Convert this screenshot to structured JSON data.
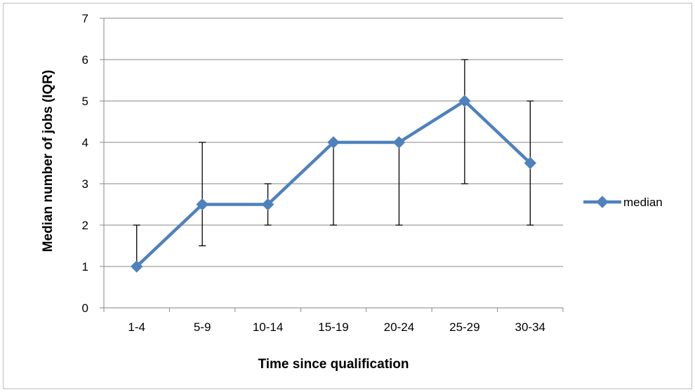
{
  "chart_data": {
    "type": "line",
    "categories": [
      "1-4",
      "5-9",
      "10-14",
      "15-19",
      "20-24",
      "25-29",
      "30-34"
    ],
    "series": [
      {
        "name": "median",
        "values": [
          1,
          2.5,
          2.5,
          4,
          4,
          5,
          3.5
        ],
        "error_low": [
          1,
          1.5,
          2,
          2,
          2,
          3,
          2
        ],
        "error_high": [
          2,
          4,
          3,
          4,
          4,
          6,
          5
        ],
        "color": "#4F81BD",
        "marker": "diamond"
      }
    ],
    "xlabel": "Time since qualification",
    "ylabel": "Median number of jobs (IQR)",
    "ylim": [
      0,
      7
    ],
    "yticks": [
      "0",
      "1",
      "2",
      "3",
      "4",
      "5",
      "6",
      "7"
    ],
    "grid": true,
    "legend_position": "right",
    "colors": {
      "gridline": "#868686",
      "axis": "#868686",
      "frame": "#bdbdbd",
      "error_bar": "#000000"
    }
  }
}
